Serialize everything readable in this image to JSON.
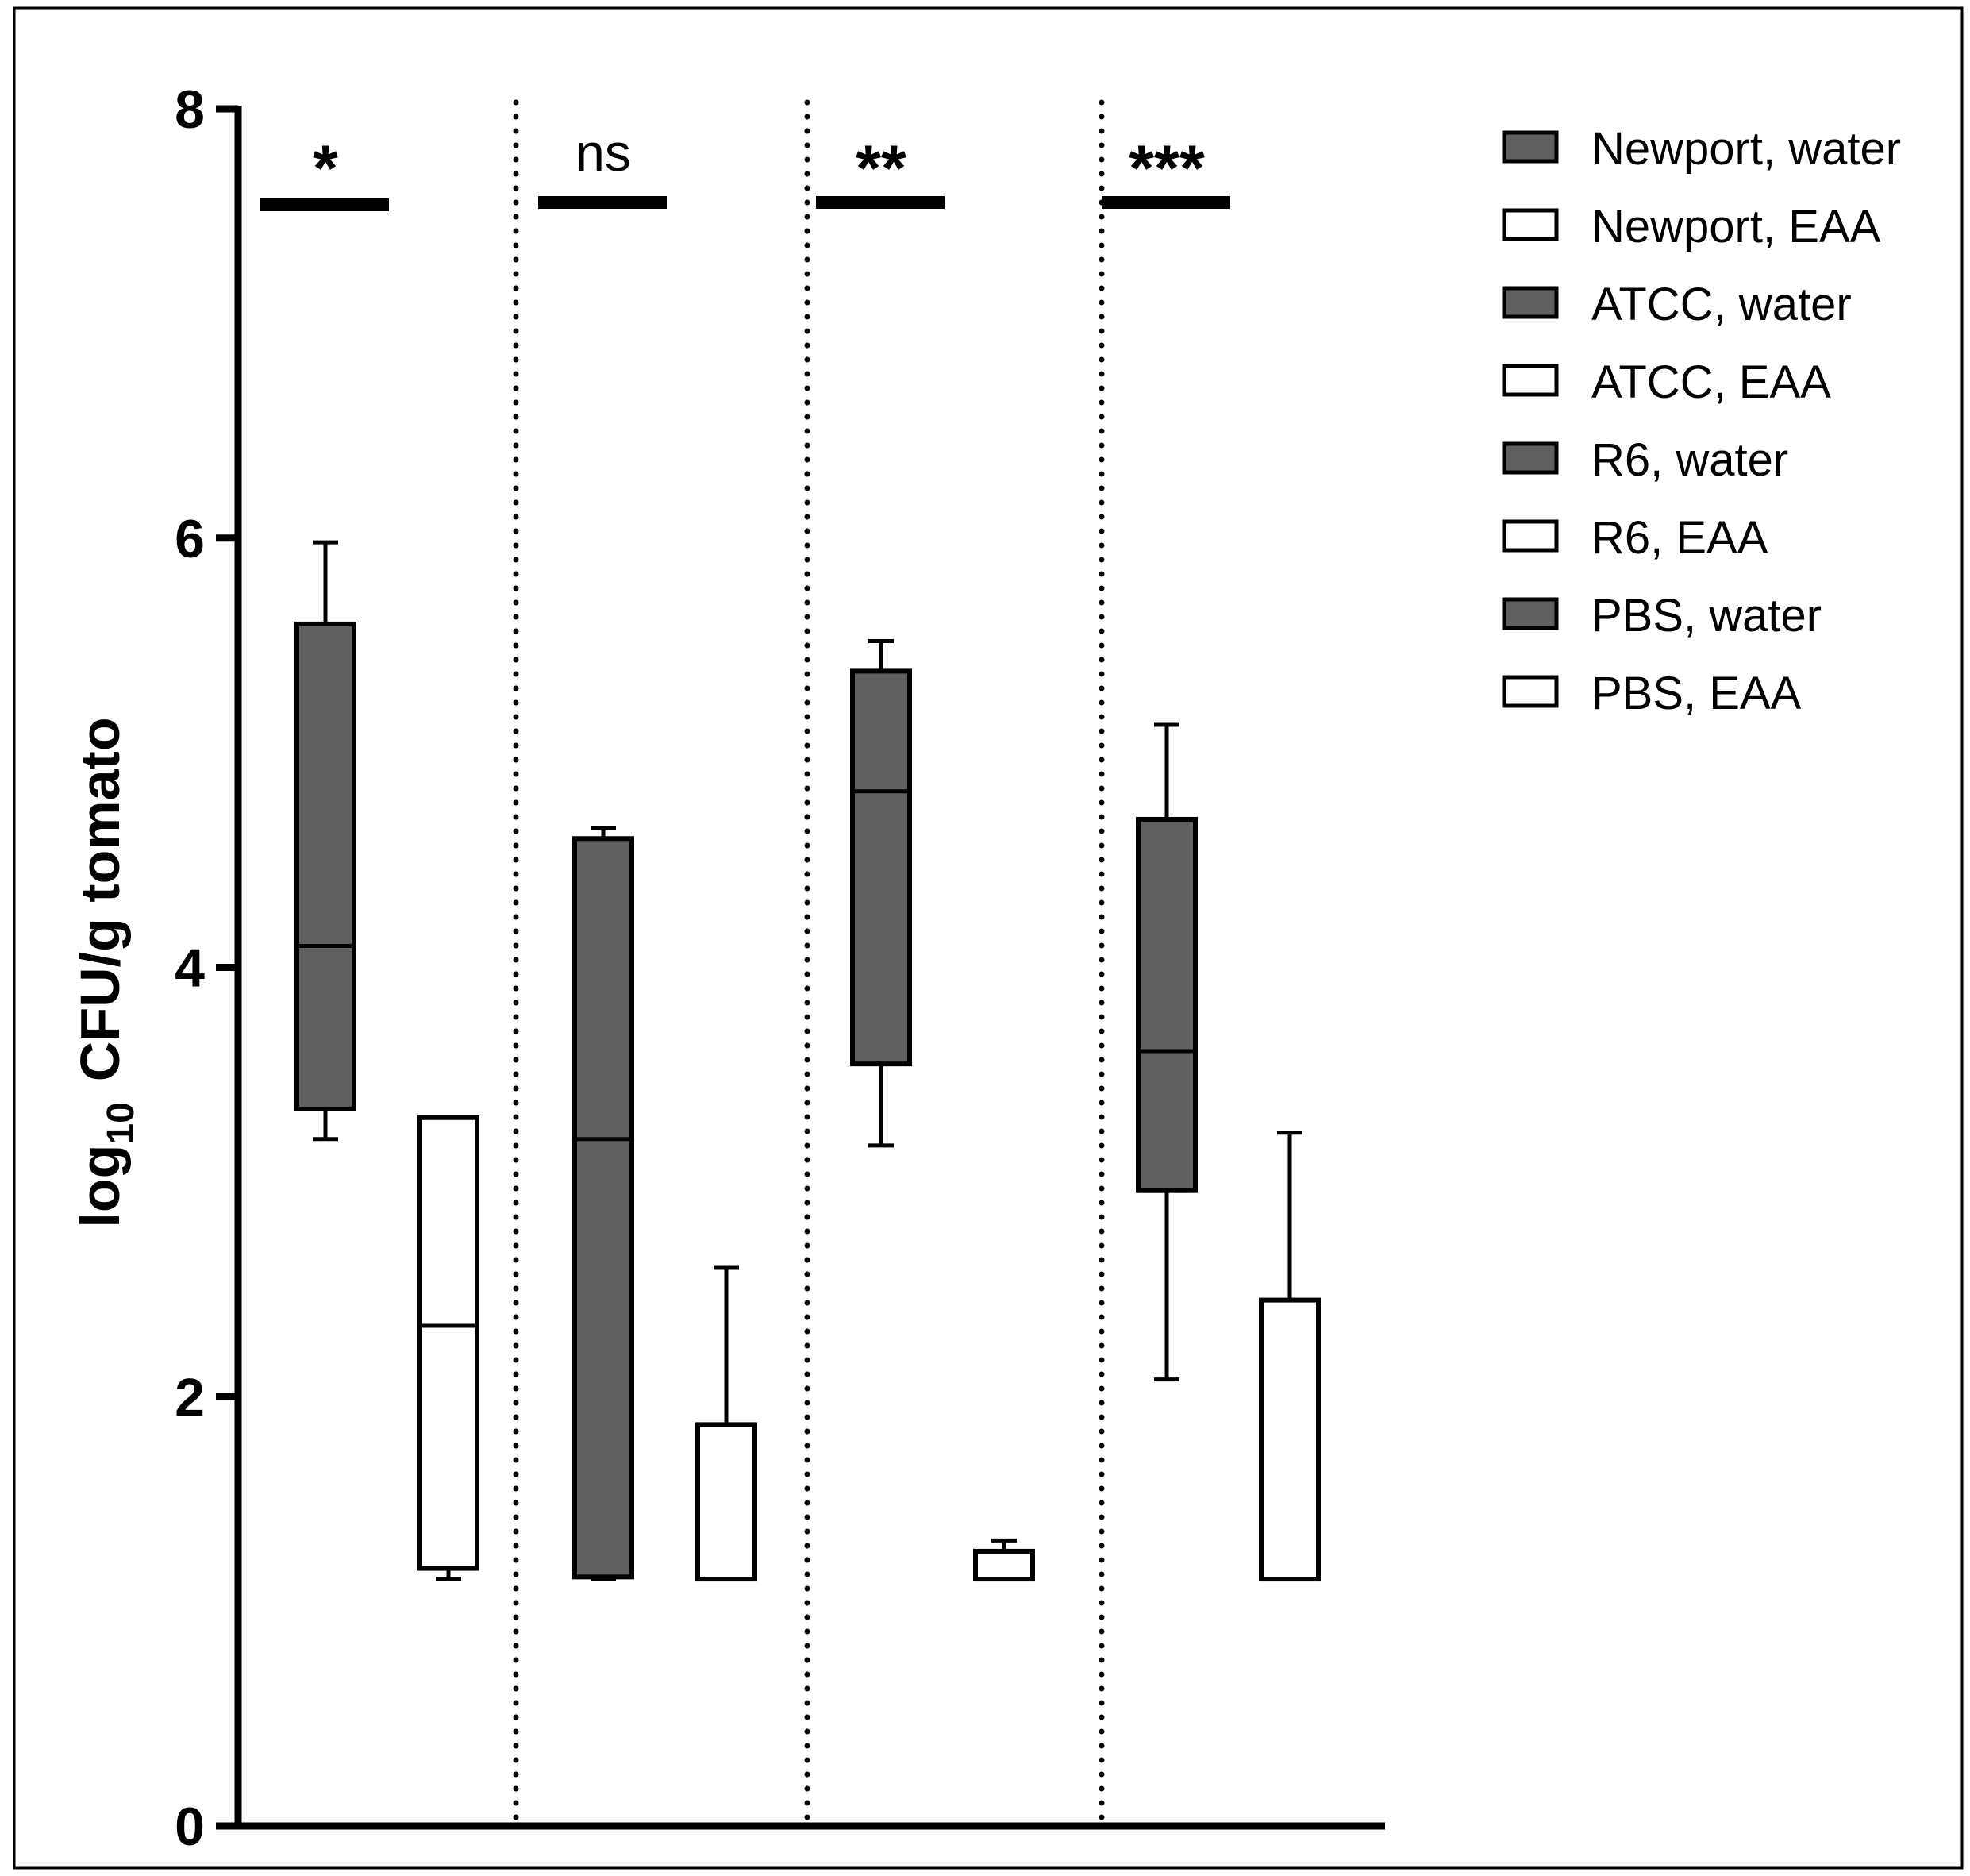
{
  "chart_data": {
    "type": "box",
    "ylabel_main": "log",
    "ylabel_sub": "10",
    "ylabel_rest": "CFU/g tomato",
    "xlabel": "",
    "ylim": [
      0,
      8
    ],
    "yticks": [
      0,
      2,
      4,
      6,
      8
    ],
    "colors": {
      "water": "#606060",
      "eaa": "#ffffff",
      "stroke": "#000000"
    },
    "groups": [
      {
        "strain": "Newport",
        "significance": "*",
        "boxes": [
          {
            "name": "Newport, water",
            "fill": "water",
            "min": 3.2,
            "q1": 3.34,
            "median": 4.1,
            "q3": 5.6,
            "max": 5.98
          },
          {
            "name": "Newport, EAA",
            "fill": "eaa",
            "min": 1.15,
            "q1": 1.2,
            "median": 2.33,
            "q3": 3.3,
            "max": 3.3
          }
        ]
      },
      {
        "strain": "ATCC",
        "significance": "ns",
        "boxes": [
          {
            "name": "ATCC, water",
            "fill": "water",
            "min": 1.15,
            "q1": 1.16,
            "median": 3.2,
            "q3": 4.6,
            "max": 4.65
          },
          {
            "name": "ATCC, EAA",
            "fill": "eaa",
            "min": 1.15,
            "q1": 1.15,
            "median": 1.15,
            "q3": 1.87,
            "max": 2.6
          }
        ]
      },
      {
        "strain": "R6",
        "significance": "**",
        "boxes": [
          {
            "name": "R6, water",
            "fill": "water",
            "min": 3.17,
            "q1": 3.55,
            "median": 4.82,
            "q3": 5.38,
            "max": 5.52
          },
          {
            "name": "R6, EAA",
            "fill": "eaa",
            "min": 1.15,
            "q1": 1.15,
            "median": 1.15,
            "q3": 1.28,
            "max": 1.33
          }
        ]
      },
      {
        "strain": "PBS",
        "significance": "***",
        "boxes": [
          {
            "name": "PBS, water",
            "fill": "water",
            "min": 2.08,
            "q1": 2.96,
            "median": 3.61,
            "q3": 4.69,
            "max": 5.13
          },
          {
            "name": "PBS, EAA",
            "fill": "eaa",
            "min": 1.15,
            "q1": 1.15,
            "median": 1.15,
            "q3": 2.45,
            "max": 3.23
          }
        ]
      }
    ],
    "legend": [
      {
        "label": "Newport, water",
        "fill": "water"
      },
      {
        "label": "Newport, EAA",
        "fill": "eaa"
      },
      {
        "label": "ATCC, water",
        "fill": "water"
      },
      {
        "label": "ATCC, EAA",
        "fill": "eaa"
      },
      {
        "label": "R6, water",
        "fill": "water"
      },
      {
        "label": "R6, EAA",
        "fill": "eaa"
      },
      {
        "label": "PBS, water",
        "fill": "water"
      },
      {
        "label": "PBS, EAA",
        "fill": "eaa"
      }
    ],
    "legend_position": "top-right",
    "group_separators": "dotted",
    "grid": false
  }
}
